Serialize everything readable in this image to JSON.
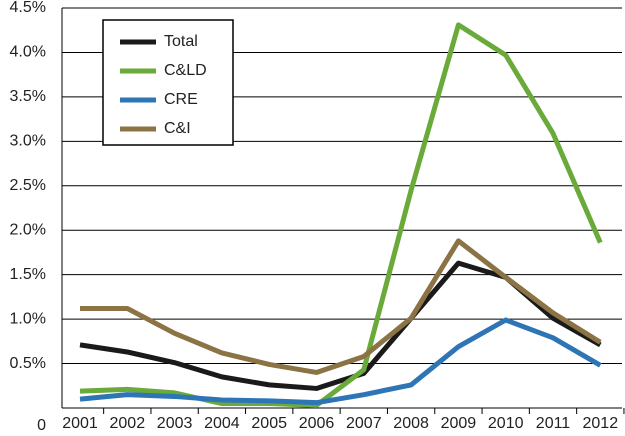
{
  "chart_data": {
    "type": "line",
    "x": [
      "2001",
      "2002",
      "2003",
      "2004",
      "2005",
      "2006",
      "2007",
      "2008",
      "2009",
      "2010",
      "2011",
      "2012"
    ],
    "series": [
      {
        "name": "Total",
        "color": "#1a1a1a",
        "values": [
          0.71,
          0.63,
          0.51,
          0.35,
          0.26,
          0.22,
          0.39,
          1.01,
          1.63,
          1.47,
          1.01,
          0.71
        ]
      },
      {
        "name": "C&LD",
        "color": "#6aaa3a",
        "values": [
          0.19,
          0.21,
          0.17,
          0.05,
          0.05,
          0.03,
          0.43,
          2.45,
          4.31,
          3.97,
          3.09,
          1.86
        ]
      },
      {
        "name": "CRE",
        "color": "#2e75b6",
        "values": [
          0.1,
          0.15,
          0.13,
          0.09,
          0.08,
          0.06,
          0.15,
          0.26,
          0.69,
          0.99,
          0.79,
          0.48
        ]
      },
      {
        "name": "C&I",
        "color": "#8c7346",
        "values": [
          1.12,
          1.12,
          0.84,
          0.62,
          0.49,
          0.4,
          0.58,
          1.01,
          1.88,
          1.47,
          1.07,
          0.74
        ]
      }
    ],
    "ylim": [
      0,
      4.5
    ],
    "yticks": [
      0,
      {
        "value": 0.5,
        "label": "0.5%"
      },
      {
        "value": 1,
        "label": "1.0%"
      },
      {
        "value": 1.5,
        "label": "1.5%"
      },
      {
        "value": 2,
        "label": "2.0%"
      },
      {
        "value": 2.5,
        "label": "2.5%"
      },
      {
        "value": 3,
        "label": "3.0%"
      },
      {
        "value": 3.5,
        "label": "3.5%"
      },
      {
        "value": 4,
        "label": "4.0%"
      },
      {
        "value": 4.5,
        "label": "4.5%"
      }
    ],
    "grid": true,
    "legend": "upper-left"
  }
}
